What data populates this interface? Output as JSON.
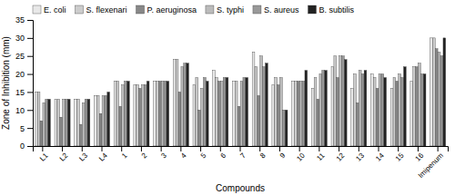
{
  "chart_data": {
    "type": "bar",
    "xlabel": "Compounds",
    "ylabel": "Zone of Inhibition (mm)",
    "categories": [
      "L1",
      "L2",
      "L3",
      "L4",
      "1",
      "2",
      "3",
      "4",
      "5",
      "6",
      "7",
      "8",
      "9",
      "10",
      "11",
      "12",
      "13",
      "14",
      "15",
      "16",
      "Imipenum"
    ],
    "series": [
      {
        "name": "E. coli",
        "color": "#e8e8e8",
        "values": [
          15,
          13,
          13,
          14,
          18,
          17,
          18,
          24,
          17,
          21,
          18,
          26,
          17,
          18,
          16,
          22,
          16,
          20,
          16,
          18,
          30
        ]
      },
      {
        "name": "S. flexenari",
        "color": "#cccccc",
        "values": [
          15,
          13,
          13,
          14,
          18,
          17,
          18,
          24,
          19,
          19,
          18,
          22,
          19,
          18,
          19,
          25,
          20,
          19,
          19,
          22,
          30
        ]
      },
      {
        "name": "P. aeruginosa",
        "color": "#888888",
        "values": [
          7,
          8,
          6,
          9,
          11,
          16,
          18,
          15,
          10,
          18,
          11,
          14,
          17,
          18,
          13,
          19,
          12,
          16,
          18,
          22,
          27
        ]
      },
      {
        "name": "S. typhi",
        "color": "#bbbbbb",
        "values": [
          12,
          13,
          12,
          14,
          17,
          17,
          18,
          22,
          16,
          18,
          18,
          25,
          19,
          18,
          20,
          25,
          21,
          20,
          20,
          23,
          26
        ]
      },
      {
        "name": "S. aureus",
        "color": "#999999",
        "values": [
          13,
          13,
          13,
          14,
          18,
          17,
          18,
          23,
          19,
          19,
          19,
          22,
          10,
          18,
          21,
          25,
          20,
          20,
          19,
          20,
          25
        ]
      },
      {
        "name": "B. subtilis",
        "color": "#222222",
        "values": [
          13,
          13,
          13,
          15,
          18,
          18,
          18,
          23,
          18,
          19,
          19,
          23,
          10,
          21,
          21,
          24,
          21,
          19,
          22,
          20,
          30
        ]
      }
    ],
    "ylim": [
      0,
      35
    ],
    "yticks": [
      0,
      5,
      10,
      15,
      20,
      25,
      30,
      35
    ],
    "legend": "upper left",
    "grid": false
  }
}
